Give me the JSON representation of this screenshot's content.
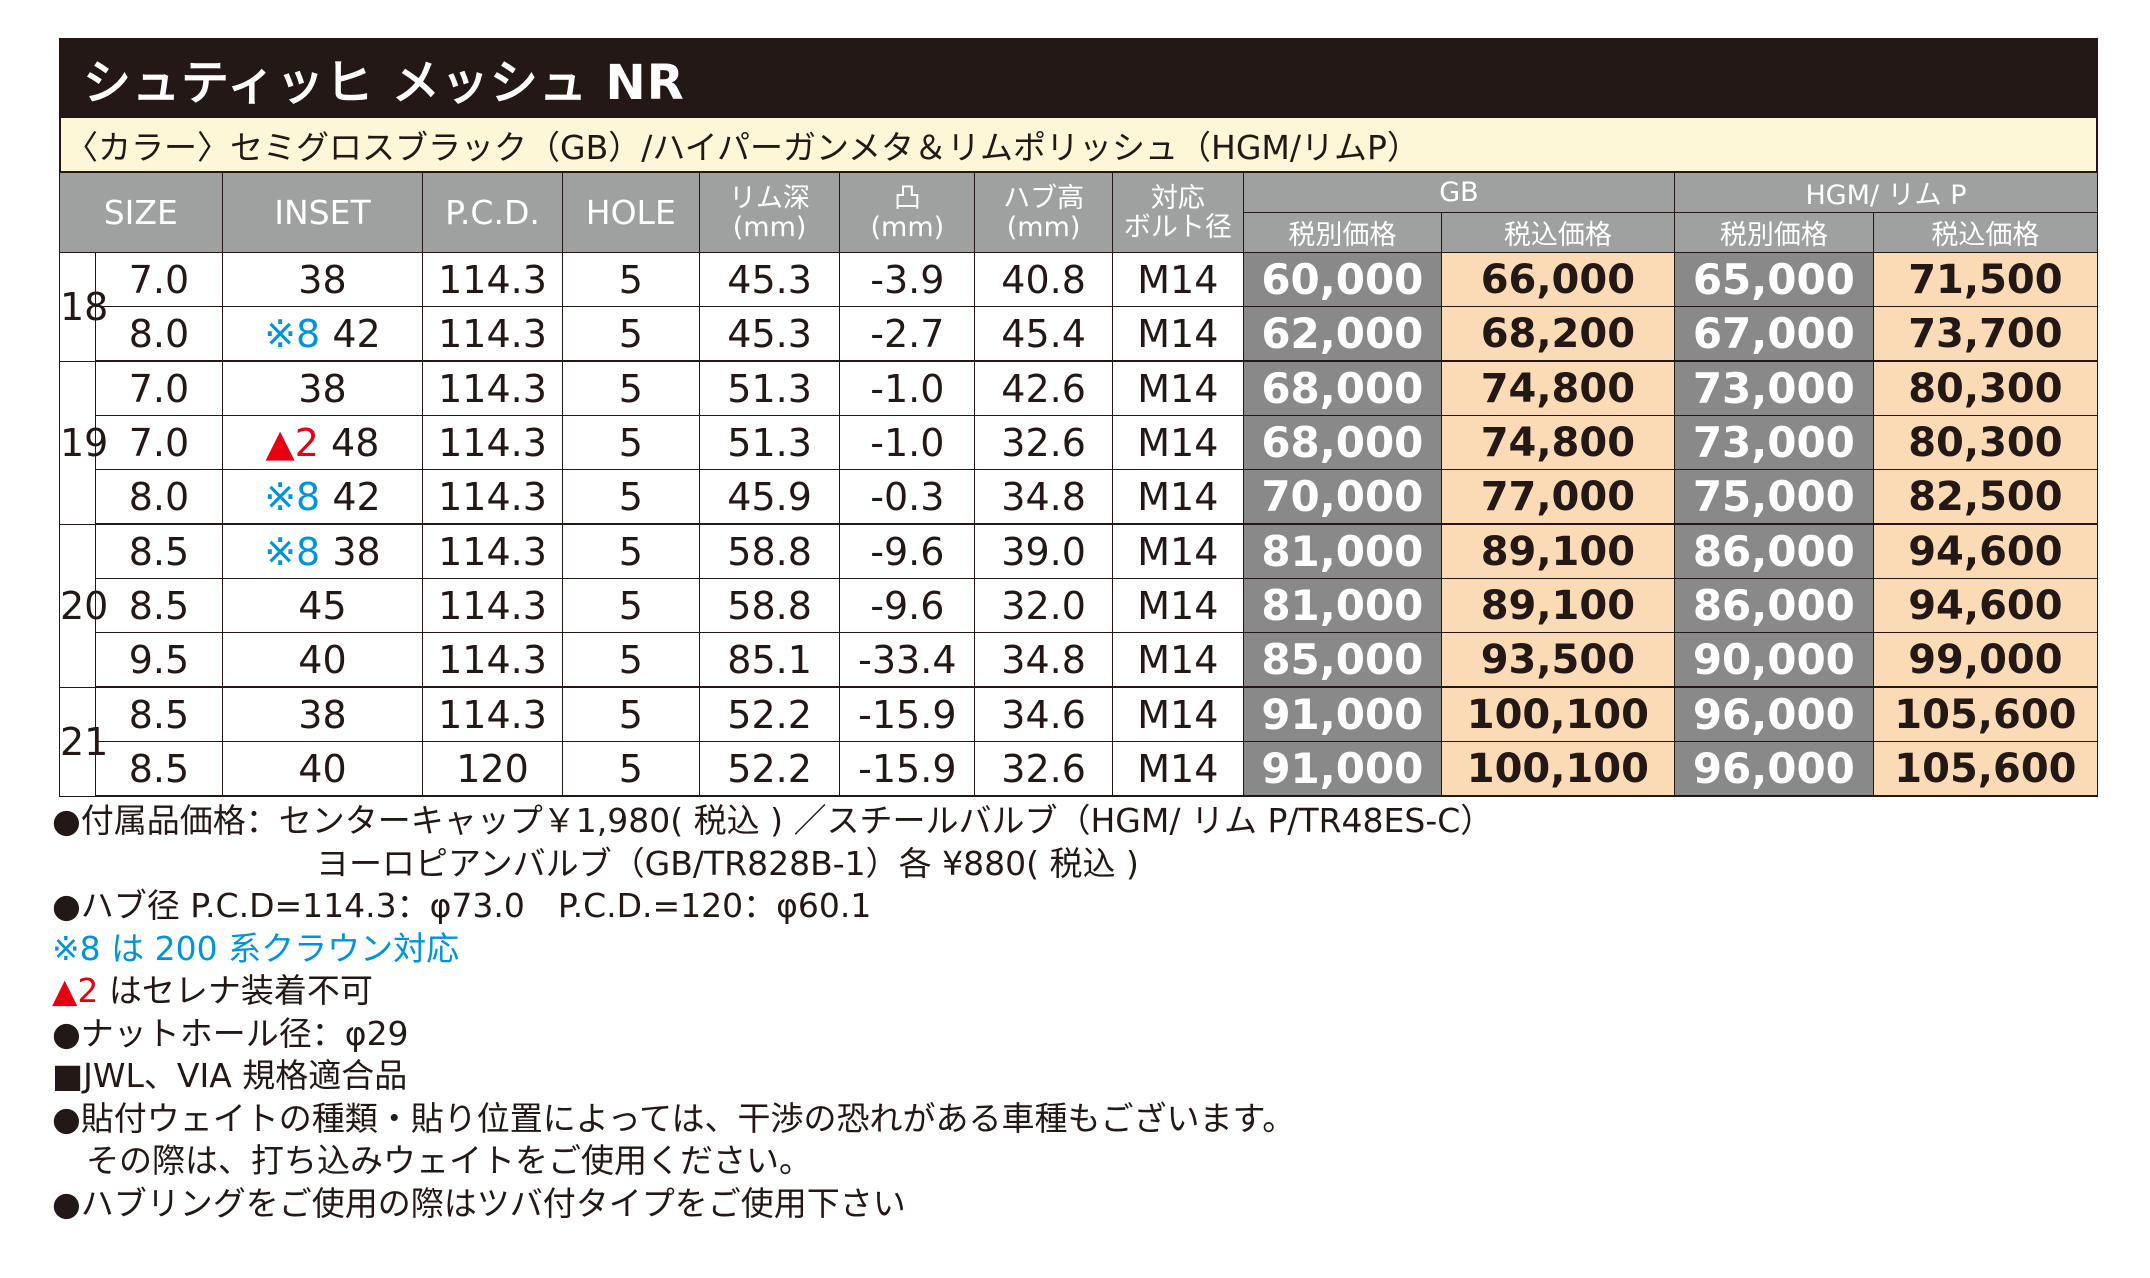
{
  "title": "シュティッヒ メッシュ NR",
  "color_line": "〈カラー〉セミグロスブラック（GB）/ハイパーガンメタ＆リムポリッシュ（HGM/リムP）",
  "header": {
    "size": "SIZE",
    "inset": "INSET",
    "pcd": "P.C.D.",
    "hole": "HOLE",
    "rim_depth_1": "リム深",
    "rim_depth_2": "(mm)",
    "protrusion_1": "凸",
    "protrusion_2": "(mm)",
    "hub_height_1": "ハブ高",
    "hub_height_2": "(mm)",
    "bolt_1": "対応",
    "bolt_2": "ボルト径",
    "gb": "GB",
    "hgm": "HGM/ リム P",
    "price_ex": "税別価格",
    "price_in": "税込価格"
  },
  "groups": [
    {
      "size": "18",
      "rows": [
        {
          "width": "7.0",
          "inset_note": "",
          "inset_note_color": "",
          "inset": "38",
          "pcd": "114.3",
          "hole": "5",
          "rim_depth": "45.3",
          "protrusion": "-3.9",
          "hub_height": "40.8",
          "bolt": "M14",
          "gb_ex": "60,000",
          "gb_in": "66,000",
          "hgm_ex": "65,000",
          "hgm_in": "71,500"
        },
        {
          "width": "8.0",
          "inset_note": "※8",
          "inset_note_color": "blue",
          "inset": "42",
          "pcd": "114.3",
          "hole": "5",
          "rim_depth": "45.3",
          "protrusion": "-2.7",
          "hub_height": "45.4",
          "bolt": "M14",
          "gb_ex": "62,000",
          "gb_in": "68,200",
          "hgm_ex": "67,000",
          "hgm_in": "73,700"
        }
      ]
    },
    {
      "size": "19",
      "rows": [
        {
          "width": "7.0",
          "inset_note": "",
          "inset_note_color": "",
          "inset": "38",
          "pcd": "114.3",
          "hole": "5",
          "rim_depth": "51.3",
          "protrusion": "-1.0",
          "hub_height": "42.6",
          "bolt": "M14",
          "gb_ex": "68,000",
          "gb_in": "74,800",
          "hgm_ex": "73,000",
          "hgm_in": "80,300"
        },
        {
          "width": "7.0",
          "inset_note": "▲2",
          "inset_note_color": "red",
          "inset": "48",
          "pcd": "114.3",
          "hole": "5",
          "rim_depth": "51.3",
          "protrusion": "-1.0",
          "hub_height": "32.6",
          "bolt": "M14",
          "gb_ex": "68,000",
          "gb_in": "74,800",
          "hgm_ex": "73,000",
          "hgm_in": "80,300"
        },
        {
          "width": "8.0",
          "inset_note": "※8",
          "inset_note_color": "blue",
          "inset": "42",
          "pcd": "114.3",
          "hole": "5",
          "rim_depth": "45.9",
          "protrusion": "-0.3",
          "hub_height": "34.8",
          "bolt": "M14",
          "gb_ex": "70,000",
          "gb_in": "77,000",
          "hgm_ex": "75,000",
          "hgm_in": "82,500"
        }
      ]
    },
    {
      "size": "20",
      "rows": [
        {
          "width": "8.5",
          "inset_note": "※8",
          "inset_note_color": "blue",
          "inset": "38",
          "pcd": "114.3",
          "hole": "5",
          "rim_depth": "58.8",
          "protrusion": "-9.6",
          "hub_height": "39.0",
          "bolt": "M14",
          "gb_ex": "81,000",
          "gb_in": "89,100",
          "hgm_ex": "86,000",
          "hgm_in": "94,600"
        },
        {
          "width": "8.5",
          "inset_note": "",
          "inset_note_color": "",
          "inset": "45",
          "pcd": "114.3",
          "hole": "5",
          "rim_depth": "58.8",
          "protrusion": "-9.6",
          "hub_height": "32.0",
          "bolt": "M14",
          "gb_ex": "81,000",
          "gb_in": "89,100",
          "hgm_ex": "86,000",
          "hgm_in": "94,600"
        },
        {
          "width": "9.5",
          "inset_note": "",
          "inset_note_color": "",
          "inset": "40",
          "pcd": "114.3",
          "hole": "5",
          "rim_depth": "85.1",
          "protrusion": "-33.4",
          "hub_height": "34.8",
          "bolt": "M14",
          "gb_ex": "85,000",
          "gb_in": "93,500",
          "hgm_ex": "90,000",
          "hgm_in": "99,000"
        }
      ]
    },
    {
      "size": "21",
      "rows": [
        {
          "width": "8.5",
          "inset_note": "",
          "inset_note_color": "",
          "inset": "38",
          "pcd": "114.3",
          "hole": "5",
          "rim_depth": "52.2",
          "protrusion": "-15.9",
          "hub_height": "34.6",
          "bolt": "M14",
          "gb_ex": "91,000",
          "gb_in": "100,100",
          "hgm_ex": "96,000",
          "hgm_in": "105,600"
        },
        {
          "width": "8.5",
          "inset_note": "",
          "inset_note_color": "",
          "inset": "40",
          "pcd": "120",
          "hole": "5",
          "rim_depth": "52.2",
          "protrusion": "-15.9",
          "hub_height": "32.6",
          "bolt": "M14",
          "gb_ex": "91,000",
          "gb_in": "100,100",
          "hgm_ex": "96,000",
          "hgm_in": "105,600"
        }
      ]
    }
  ],
  "notes": {
    "accessory_1": "●付属品価格：センターキャップ￥1,980( 税込 ) ／スチールバルブ（HGM/ リム P/TR48ES-C）",
    "accessory_2": "ヨーロピアンバルブ（GB/TR828B-1）各 ¥880( 税込 )",
    "hub": "●ハブ径 P.C.D=114.3：φ73.0　P.C.D.=120：φ60.1",
    "note8_mark": "※8",
    "note8_text": " は 200 系クラウン対応",
    "note2_mark": "▲2",
    "note2_text": " はセレナ装着不可",
    "nut": "●ナットホール径：φ29",
    "jwl": "■JWL、VIA 規格適合品",
    "weight_1": "●貼付ウェイトの種類・貼り位置によっては、干渉の恐れがある車種もございます。",
    "weight_2": "その際は、打ち込みウェイトをご使用ください。",
    "hubring": "●ハブリングをご使用の際はツバ付タイプをご使用下さい"
  },
  "colors": {
    "title_bg": "#231815",
    "color_line_bg": "#fdf6d7",
    "header_bg": "#9fa0a0",
    "price_ex_bg": "#898989",
    "price_in_bg": "#fbdbb5",
    "note_blue": "#0095d9",
    "note_red": "#e60012"
  }
}
